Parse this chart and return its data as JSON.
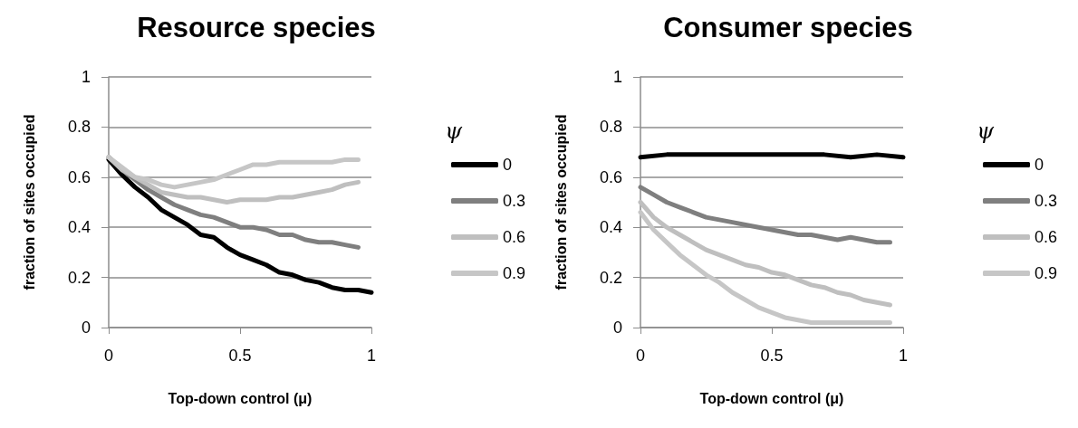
{
  "chart_data": [
    {
      "type": "line",
      "title": "Resource species",
      "xlabel": "Top-down control (μ)",
      "ylabel": "fraction of sites occupied",
      "legend_title": "ψ",
      "xlim": [
        0,
        1
      ],
      "xticks": [
        0,
        0.5,
        1
      ],
      "ylim": [
        0,
        1
      ],
      "yticks": [
        0,
        0.2,
        0.4,
        0.6,
        0.8,
        1
      ],
      "grid": "y",
      "legend": "right",
      "marker": "none",
      "line_style": "solid",
      "series": [
        {
          "name": "0",
          "color": "#000000",
          "x": [
            0,
            0.05,
            0.1,
            0.15,
            0.2,
            0.25,
            0.3,
            0.35,
            0.4,
            0.45,
            0.5,
            0.55,
            0.6,
            0.65,
            0.7,
            0.75,
            0.8,
            0.85,
            0.9,
            0.95,
            1
          ],
          "values": [
            0.67,
            0.61,
            0.56,
            0.52,
            0.47,
            0.44,
            0.41,
            0.37,
            0.36,
            0.32,
            0.29,
            0.27,
            0.25,
            0.22,
            0.21,
            0.19,
            0.18,
            0.16,
            0.15,
            0.15,
            0.14
          ]
        },
        {
          "name": "0.3",
          "color": "#7f7f7f",
          "x": [
            0,
            0.05,
            0.1,
            0.15,
            0.2,
            0.25,
            0.3,
            0.35,
            0.4,
            0.45,
            0.5,
            0.55,
            0.6,
            0.65,
            0.7,
            0.75,
            0.8,
            0.85,
            0.9,
            0.95
          ],
          "values": [
            0.68,
            0.63,
            0.59,
            0.55,
            0.52,
            0.49,
            0.47,
            0.45,
            0.44,
            0.42,
            0.4,
            0.4,
            0.39,
            0.37,
            0.37,
            0.35,
            0.34,
            0.34,
            0.33,
            0.32
          ]
        },
        {
          "name": "0.6",
          "color": "#bfbfbf",
          "x": [
            0,
            0.05,
            0.1,
            0.15,
            0.2,
            0.25,
            0.3,
            0.35,
            0.4,
            0.45,
            0.5,
            0.55,
            0.6,
            0.65,
            0.7,
            0.75,
            0.8,
            0.85,
            0.9,
            0.95
          ],
          "values": [
            0.68,
            0.63,
            0.6,
            0.57,
            0.54,
            0.53,
            0.52,
            0.52,
            0.51,
            0.5,
            0.51,
            0.51,
            0.51,
            0.52,
            0.52,
            0.53,
            0.54,
            0.55,
            0.57,
            0.58
          ]
        },
        {
          "name": "0.9",
          "color": "#c6c6c6",
          "x": [
            0,
            0.05,
            0.1,
            0.15,
            0.2,
            0.25,
            0.3,
            0.35,
            0.4,
            0.45,
            0.5,
            0.55,
            0.6,
            0.65,
            0.7,
            0.75,
            0.8,
            0.85,
            0.9,
            0.95
          ],
          "values": [
            0.68,
            0.64,
            0.6,
            0.59,
            0.57,
            0.56,
            0.57,
            0.58,
            0.59,
            0.61,
            0.63,
            0.65,
            0.65,
            0.66,
            0.66,
            0.66,
            0.66,
            0.66,
            0.67,
            0.67
          ]
        }
      ]
    },
    {
      "type": "line",
      "title": "Consumer species",
      "xlabel": "Top-down control (μ)",
      "ylabel": "fraction of sites occupied",
      "legend_title": "ψ",
      "xlim": [
        0,
        1
      ],
      "xticks": [
        0,
        0.5,
        1
      ],
      "ylim": [
        0,
        1
      ],
      "yticks": [
        0,
        0.2,
        0.4,
        0.6,
        0.8,
        1
      ],
      "grid": "y",
      "legend": "right",
      "marker": "none",
      "line_style": "solid",
      "series": [
        {
          "name": "0",
          "color": "#000000",
          "x": [
            0,
            0.1,
            0.2,
            0.3,
            0.4,
            0.5,
            0.6,
            0.7,
            0.8,
            0.9,
            1
          ],
          "values": [
            0.68,
            0.69,
            0.69,
            0.69,
            0.69,
            0.69,
            0.69,
            0.69,
            0.68,
            0.69,
            0.68
          ]
        },
        {
          "name": "0.3",
          "color": "#7f7f7f",
          "x": [
            0,
            0.05,
            0.1,
            0.15,
            0.2,
            0.25,
            0.3,
            0.35,
            0.4,
            0.45,
            0.5,
            0.55,
            0.6,
            0.65,
            0.7,
            0.75,
            0.8,
            0.85,
            0.9,
            0.95
          ],
          "values": [
            0.56,
            0.53,
            0.5,
            0.48,
            0.46,
            0.44,
            0.43,
            0.42,
            0.41,
            0.4,
            0.39,
            0.38,
            0.37,
            0.37,
            0.36,
            0.35,
            0.36,
            0.35,
            0.34,
            0.34
          ]
        },
        {
          "name": "0.6",
          "color": "#bfbfbf",
          "x": [
            0,
            0.05,
            0.1,
            0.15,
            0.2,
            0.25,
            0.3,
            0.35,
            0.4,
            0.45,
            0.5,
            0.55,
            0.6,
            0.65,
            0.7,
            0.75,
            0.8,
            0.85,
            0.9,
            0.95
          ],
          "values": [
            0.5,
            0.44,
            0.4,
            0.37,
            0.34,
            0.31,
            0.29,
            0.27,
            0.25,
            0.24,
            0.22,
            0.21,
            0.19,
            0.17,
            0.16,
            0.14,
            0.13,
            0.11,
            0.1,
            0.09
          ]
        },
        {
          "name": "0.9",
          "color": "#c6c6c6",
          "x": [
            0,
            0.05,
            0.1,
            0.15,
            0.2,
            0.25,
            0.3,
            0.35,
            0.4,
            0.45,
            0.5,
            0.55,
            0.6,
            0.65,
            0.7,
            0.75,
            0.8,
            0.85,
            0.9,
            0.95
          ],
          "values": [
            0.46,
            0.39,
            0.34,
            0.29,
            0.25,
            0.21,
            0.18,
            0.14,
            0.11,
            0.08,
            0.06,
            0.04,
            0.03,
            0.02,
            0.02,
            0.02,
            0.02,
            0.02,
            0.02,
            0.02
          ]
        }
      ]
    }
  ]
}
